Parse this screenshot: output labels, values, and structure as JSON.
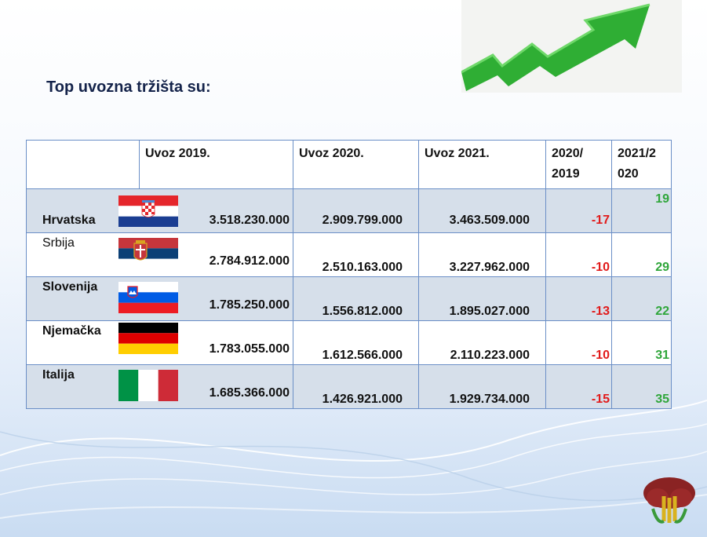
{
  "slide": {
    "title": "Top uvozna tržišta su:"
  },
  "table": {
    "headers": [
      "",
      "Uvoz 2019.",
      "Uvoz 2020.",
      "Uvoz 2021.",
      "2020/\n2019",
      "2021/2\n020"
    ],
    "rows": [
      {
        "country": "Hrvatska",
        "flag": "croatia-flag",
        "v2019": "3.518.230.000",
        "v2020": "2.909.799.000",
        "v2021": "3.463.509.000",
        "p2020": "-17",
        "p2021": "19"
      },
      {
        "country": "Srbija",
        "flag": "serbia-flag",
        "v2019": "2.784.912.000",
        "v2020": "2.510.163.000",
        "v2021": "3.227.962.000",
        "p2020": "-10",
        "p2021": "29"
      },
      {
        "country": "Slovenija",
        "flag": "slovenia-flag",
        "v2019": "1.785.250.000",
        "v2020": "1.556.812.000",
        "v2021": "1.895.027.000",
        "p2020": "-13",
        "p2021": "22"
      },
      {
        "country": "Njemačka",
        "flag": "germany-flag",
        "v2019": "1.783.055.000",
        "v2020": "1.612.566.000",
        "v2021": "2.110.223.000",
        "p2020": "-10",
        "p2021": "31"
      },
      {
        "country": "Italija",
        "flag": "italy-flag",
        "v2019": "1.685.366.000",
        "v2020": "1.426.921.000",
        "v2021": "1.929.734.000",
        "p2020": "-15",
        "p2021": "35"
      }
    ]
  },
  "colors": {
    "negative": "#e11b1b",
    "positive": "#2fa63a",
    "title": "#14234a",
    "shaded_row": "#d6dfea"
  }
}
